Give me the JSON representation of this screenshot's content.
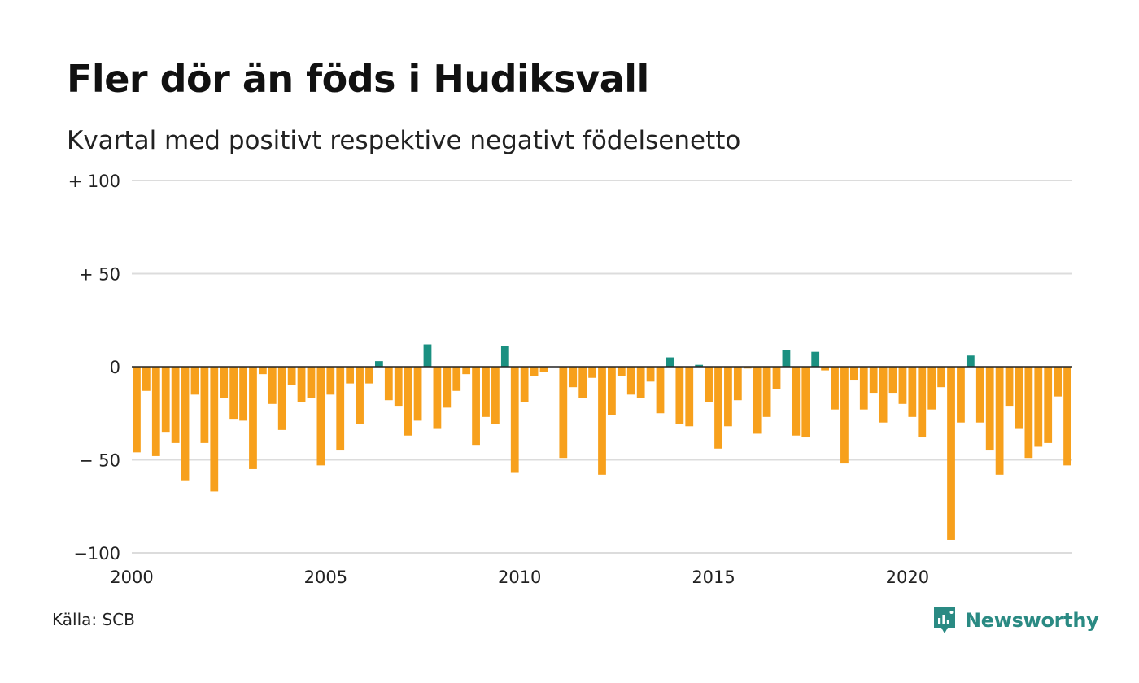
{
  "title": "Fler dör än föds i Hudiksvall",
  "subtitle": "Kvartal med positivt respektive negativt födelsenetto",
  "source": "Källa: SCB",
  "brand": {
    "name": "Newsworthy",
    "icon": "newsworthy-logo-icon"
  },
  "colors": {
    "positive": "#1a9081",
    "negative": "#f7a01c",
    "grid": "#dcdcdc",
    "zero_line": "#222222"
  },
  "chart_data": {
    "type": "bar",
    "title": "Fler dör än föds i Hudiksvall",
    "subtitle": "Kvartal med positivt respektive negativt födelsenetto",
    "xlabel": "",
    "ylabel": "",
    "ylim": [
      -100,
      100
    ],
    "xlim": [
      2000,
      2024.25
    ],
    "grid": true,
    "y_ticks": [
      {
        "value": 100,
        "label": "+ 100"
      },
      {
        "value": 50,
        "label": "+  50"
      },
      {
        "value": 0,
        "label": "0"
      },
      {
        "value": -50,
        "label": "− 50"
      },
      {
        "value": -100,
        "label": "−100"
      }
    ],
    "x_ticks": [
      {
        "value": 2000,
        "label": "2000"
      },
      {
        "value": 2005,
        "label": "2005"
      },
      {
        "value": 2010,
        "label": "2010"
      },
      {
        "value": 2015,
        "label": "2015"
      },
      {
        "value": 2020,
        "label": "2020"
      }
    ],
    "x_start": 2000,
    "period": "quarter",
    "values": [
      -46,
      -13,
      -48,
      -35,
      -41,
      -61,
      -15,
      -41,
      -67,
      -17,
      -28,
      -29,
      -55,
      -4,
      -20,
      -34,
      -10,
      -19,
      -17,
      -53,
      -15,
      -45,
      -9,
      -31,
      -9,
      3,
      -18,
      -21,
      -37,
      -29,
      12,
      -33,
      -22,
      -13,
      -4,
      -42,
      -27,
      -31,
      11,
      -57,
      -19,
      -5,
      -3,
      0,
      -49,
      -11,
      -17,
      -6,
      -58,
      -26,
      -5,
      -15,
      -17,
      -8,
      -25,
      5,
      -31,
      -32,
      1,
      -19,
      -44,
      -32,
      -18,
      -1,
      -36,
      -27,
      -12,
      9,
      -37,
      -38,
      8,
      -2,
      -23,
      -52,
      -7,
      -23,
      -14,
      -30,
      -14,
      -20,
      -27,
      -38,
      -23,
      -11,
      -93,
      -30,
      6,
      -30,
      -45,
      -58,
      -21,
      -33,
      -49,
      -43,
      -41,
      -16,
      -53
    ]
  }
}
